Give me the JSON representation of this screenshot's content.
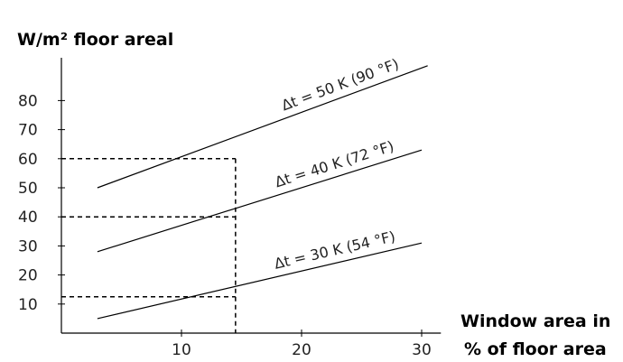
{
  "chart_data": {
    "type": "line",
    "ylabel": "W/m² floor areal",
    "xlabel_line1": "Window area in",
    "xlabel_line2": "% of floor area",
    "xlim": [
      0,
      31
    ],
    "ylim": [
      0,
      92
    ],
    "x_ticks": [
      10,
      20,
      30
    ],
    "y_ticks": [
      10,
      20,
      30,
      40,
      50,
      60,
      70,
      80
    ],
    "series": [
      {
        "name": "Δt = 50 K (90 °F)",
        "x": [
          3,
          30.5
        ],
        "y": [
          50,
          92
        ]
      },
      {
        "name": "Δt = 40 K (72 °F)",
        "x": [
          3,
          30
        ],
        "y": [
          28,
          63
        ]
      },
      {
        "name": "Δt = 30 K (54 °F)",
        "x": [
          3,
          30
        ],
        "y": [
          5,
          31
        ]
      }
    ],
    "reference_lines": [
      {
        "x_end": 14.5,
        "y": 60
      },
      {
        "x_end": 14.5,
        "y": 40
      },
      {
        "x_end": 14.5,
        "y": 12.5
      }
    ],
    "reference_vertical_x": 14.5
  }
}
